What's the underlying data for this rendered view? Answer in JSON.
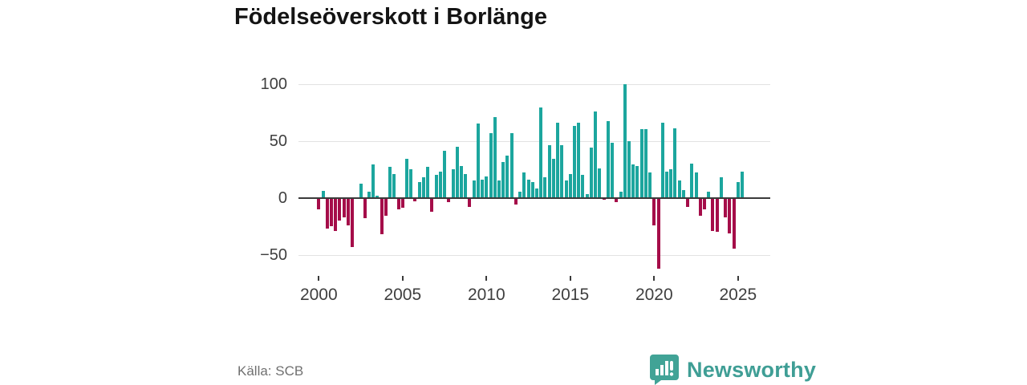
{
  "title": "Födelseöverskott i Borlänge",
  "source": "Källa: SCB",
  "branding": {
    "name": "Newsworthy",
    "logo_icon": "bar-chart-speech-bubble-icon"
  },
  "colors": {
    "positive_bar": "#1ca69e",
    "negative_bar": "#a50d49",
    "zero_line": "#3a3a3a",
    "gridline": "#e2e2e2",
    "brand_teal": "#41a396"
  },
  "chart_data": {
    "type": "bar",
    "title": "Födelseöverskott i Borlänge",
    "xlabel": "",
    "ylabel": "",
    "frequency": "quarterly",
    "x_start": "2000 Q1",
    "x_end": "2025 Q2",
    "values": [
      -10,
      6,
      -27,
      -25,
      -29,
      -20,
      -17,
      -24,
      -43,
      -1,
      12,
      -18,
      5,
      29,
      2,
      -32,
      -16,
      27,
      21,
      -10,
      -9,
      34,
      25,
      -3,
      14,
      18,
      27,
      -12,
      20,
      23,
      41,
      -4,
      25,
      45,
      28,
      21,
      -8,
      15,
      65,
      16,
      19,
      57,
      71,
      15,
      31,
      37,
      57,
      -6,
      5,
      22,
      16,
      14,
      8,
      79,
      18,
      46,
      34,
      66,
      46,
      15,
      21,
      63,
      66,
      20,
      3,
      44,
      76,
      26,
      -2,
      67,
      48,
      -4,
      5,
      100,
      50,
      29,
      28,
      60,
      60,
      22,
      -24,
      -62,
      66,
      23,
      25,
      61,
      15,
      7,
      -8,
      30,
      22,
      -16,
      -10,
      5,
      -29,
      -30,
      18,
      -17,
      -31,
      -45,
      14,
      23
    ],
    "y_ticks": [
      100,
      50,
      0,
      -50
    ],
    "y_tick_labels": [
      "100",
      "50",
      "0",
      "−50"
    ],
    "x_tick_years": [
      2000,
      2005,
      2010,
      2015,
      2020,
      2025
    ],
    "x_tick_labels": [
      "2000",
      "2005",
      "2010",
      "2015",
      "2020",
      "2025"
    ],
    "ylim": [
      -62,
      101
    ],
    "grid": "horizontal",
    "legend": "none",
    "bar_color_rule": "positive values teal, negative values crimson"
  }
}
